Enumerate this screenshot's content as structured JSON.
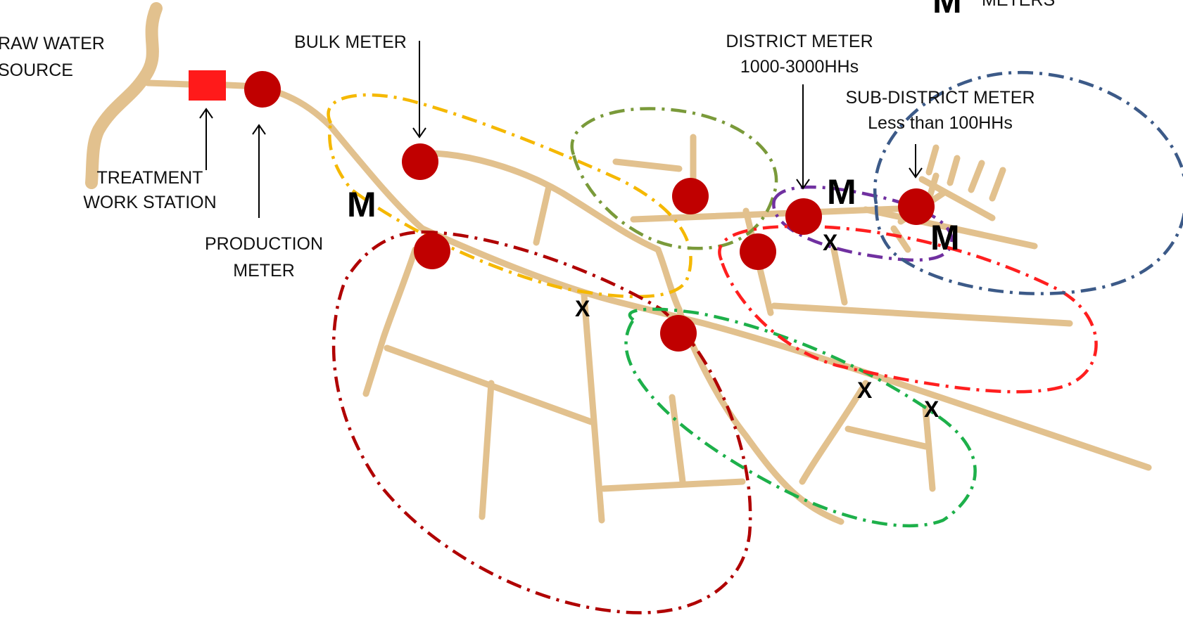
{
  "labels": {
    "raw_water_1": "RAW WATER",
    "raw_water_2": "SOURCE",
    "treatment_1": "TREATMENT",
    "treatment_2": "WORK STATION",
    "production_1": "PRODUCTION",
    "production_2": "METER",
    "bulk_meter": "BULK METER",
    "district_meter_1": "DISTRICT METER",
    "district_meter_2": "1000-3000HHs",
    "sub_district_1": "SUB-DISTRICT METER",
    "sub_district_2": "Less than 100HHs",
    "legend_meters": "METERS"
  },
  "markers": {
    "meter_symbol": "M",
    "valve_symbol": "X"
  },
  "colors": {
    "road": "#e2c18e",
    "meter_dot": "#c00000",
    "treatment_box": "#ff1a1a",
    "zone_yellow": "#f5b800",
    "zone_olive": "#7a9a3a",
    "zone_darkred": "#b00000",
    "zone_green": "#1db04a",
    "zone_purple": "#7030a0",
    "zone_red": "#ff1f1f",
    "zone_blue": "#3c5a88"
  }
}
